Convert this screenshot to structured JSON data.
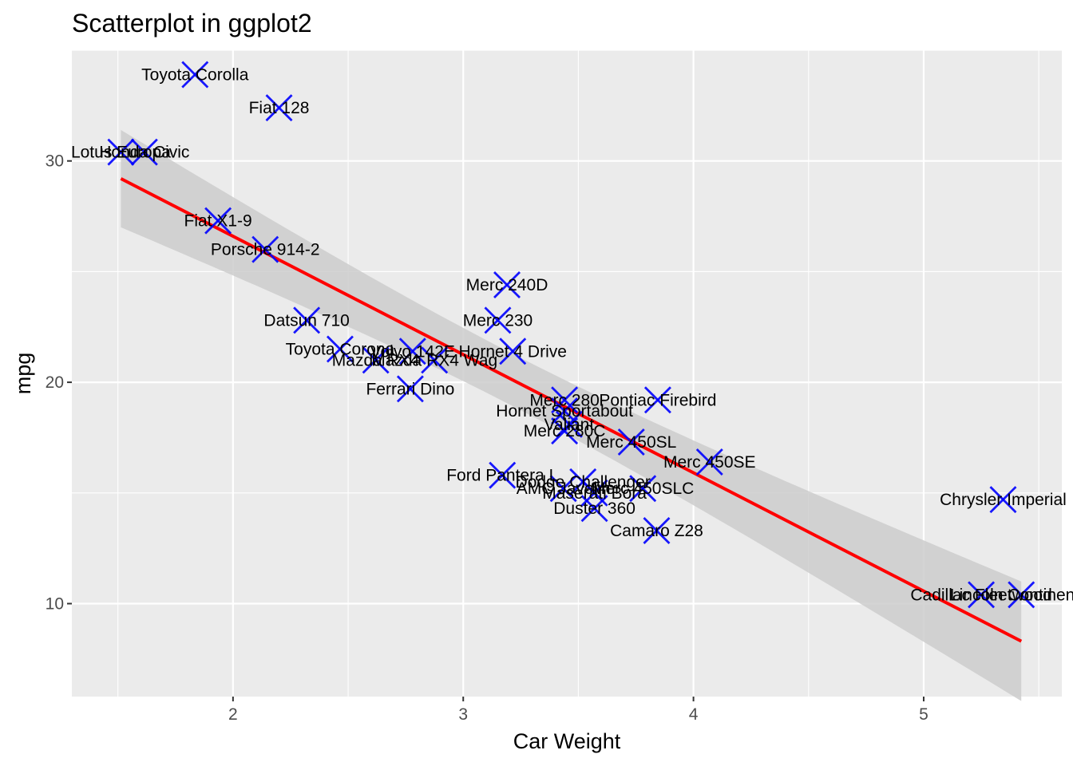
{
  "chart_data": {
    "type": "scatter",
    "title": "Scatterplot in ggplot2",
    "xlabel": "Car Weight",
    "ylabel": "mpg",
    "xlim": [
      1.3,
      5.6
    ],
    "ylim": [
      5.8,
      35.0
    ],
    "x_ticks": [
      "2",
      "3",
      "4",
      "5"
    ],
    "y_ticks": [
      "10",
      "20",
      "30"
    ],
    "grid": true,
    "background": "#EBEBEB",
    "point_color": "#0000FF",
    "point_marker": "x-cross",
    "fit": {
      "method": "linear",
      "color": "#FF0000",
      "ribbon_color": "#CCCCCC",
      "x_start": 1.513,
      "x_end": 5.424,
      "start": {
        "fit": 29.2,
        "lower": 27.0,
        "upper": 31.4
      },
      "end": {
        "fit": 8.3,
        "lower": 5.6,
        "upper": 11.0
      }
    },
    "points": [
      {
        "label": "Mazda RX4",
        "x": 2.62,
        "y": 21.0
      },
      {
        "label": "Mazda RX4 Wag",
        "x": 2.875,
        "y": 21.0
      },
      {
        "label": "Datsun 710",
        "x": 2.32,
        "y": 22.8
      },
      {
        "label": "Hornet 4 Drive",
        "x": 3.215,
        "y": 21.4
      },
      {
        "label": "Hornet Sportabout",
        "x": 3.44,
        "y": 18.7
      },
      {
        "label": "Valiant",
        "x": 3.46,
        "y": 18.1
      },
      {
        "label": "Duster 360",
        "x": 3.57,
        "y": 14.3
      },
      {
        "label": "Merc 240D",
        "x": 3.19,
        "y": 24.4
      },
      {
        "label": "Merc 230",
        "x": 3.15,
        "y": 22.8
      },
      {
        "label": "Merc 280",
        "x": 3.44,
        "y": 19.2
      },
      {
        "label": "Merc 280C",
        "x": 3.44,
        "y": 17.8
      },
      {
        "label": "Merc 450SE",
        "x": 4.07,
        "y": 16.4
      },
      {
        "label": "Merc 450SL",
        "x": 3.73,
        "y": 17.3
      },
      {
        "label": "Merc 450SLC",
        "x": 3.78,
        "y": 15.2
      },
      {
        "label": "Cadillac Fleetwood",
        "x": 5.25,
        "y": 10.4
      },
      {
        "label": "Lincoln Continental",
        "x": 5.424,
        "y": 10.4
      },
      {
        "label": "Chrysler Imperial",
        "x": 5.345,
        "y": 14.7
      },
      {
        "label": "Fiat 128",
        "x": 2.2,
        "y": 32.4
      },
      {
        "label": "Honda Civic",
        "x": 1.615,
        "y": 30.4
      },
      {
        "label": "Toyota Corolla",
        "x": 1.835,
        "y": 33.9
      },
      {
        "label": "Toyota Corona",
        "x": 2.465,
        "y": 21.5
      },
      {
        "label": "Dodge Challenger",
        "x": 3.52,
        "y": 15.5
      },
      {
        "label": "AMC Javelin",
        "x": 3.435,
        "y": 15.2
      },
      {
        "label": "Camaro Z28",
        "x": 3.84,
        "y": 13.3
      },
      {
        "label": "Pontiac Firebird",
        "x": 3.845,
        "y": 19.2
      },
      {
        "label": "Fiat X1-9",
        "x": 1.935,
        "y": 27.3
      },
      {
        "label": "Porsche 914-2",
        "x": 2.14,
        "y": 26.0
      },
      {
        "label": "Lotus Europa",
        "x": 1.513,
        "y": 30.4
      },
      {
        "label": "Ford Pantera L",
        "x": 3.17,
        "y": 15.8
      },
      {
        "label": "Ferrari Dino",
        "x": 2.77,
        "y": 19.7
      },
      {
        "label": "Maserati Bora",
        "x": 3.57,
        "y": 15.0
      },
      {
        "label": "Volvo 142E",
        "x": 2.78,
        "y": 21.4
      }
    ]
  }
}
